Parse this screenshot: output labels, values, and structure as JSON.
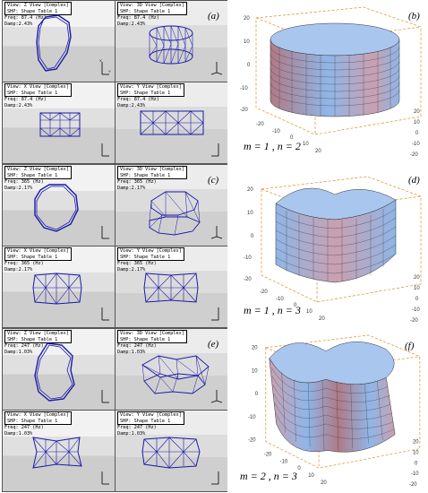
{
  "rows": [
    {
      "label_left": "(a)",
      "label_right": "(b)",
      "mode": "m = 1 , n = 2",
      "cells": [
        {
          "view": "View: Z View [Complex]",
          "shp": "SHP: Shape Table 1",
          "freq": "Freq: 87.4 (Hz)",
          "damp": "Damp:2.43%"
        },
        {
          "view": "View: 3D View [Complex]",
          "shp": "SHP: Shape Table 1",
          "freq": "Freq: 87.4 (Hz)",
          "damp": "Damp:2.43%"
        },
        {
          "view": "View: X View [Complex]",
          "shp": "SHP: Shape Table 1",
          "freq": "Freq: 87.4 (Hz)",
          "damp": "Damp:2.43%"
        },
        {
          "view": "View: Y View [Complex]",
          "shp": "SHP: Shape Table 1",
          "freq": "Freq: 87.4 (Hz)",
          "damp": "Damp:2.43%"
        }
      ],
      "ticks": {
        "z": [
          "20",
          "10",
          "0",
          "-10",
          "-20"
        ],
        "x": [
          "-20",
          "-10",
          "0",
          "10",
          "20"
        ],
        "y": [
          "-20",
          "-10",
          "0",
          "10",
          "20"
        ]
      }
    },
    {
      "label_left": "(c)",
      "label_right": "(d)",
      "mode": "m = 1 , n = 3",
      "cells": [
        {
          "view": "View: Z View [Complex]",
          "shp": "SHP: Shape Table 1",
          "freq": "Freq: 365 (Hz)",
          "damp": "Damp:2.17%"
        },
        {
          "view": "View: 3D View [Complex]",
          "shp": "SHP: Shape Table 1",
          "freq": "Freq: 365 (Hz)",
          "damp": "Damp:2.17%"
        },
        {
          "view": "View: X View [Complex]",
          "shp": "SHP: Shape Table 1",
          "freq": "Freq: 365 (Hz)",
          "damp": "Damp:2.17%"
        },
        {
          "view": "View: Y View [Complex]",
          "shp": "SHP: Shape Table 1",
          "freq": "Freq: 365 (Hz)",
          "damp": "Damp:2.17%"
        }
      ],
      "ticks": {
        "z": [
          "20",
          "10",
          "0",
          "-10",
          "-20"
        ],
        "x": [
          "-20",
          "-10",
          "0",
          "10",
          "20"
        ],
        "y": [
          "-20",
          "-10",
          "0",
          "10",
          "20"
        ]
      }
    },
    {
      "label_left": "(e)",
      "label_right": "(f)",
      "mode": "m = 2 , n = 3",
      "cells": [
        {
          "view": "View: Z View [Complex]",
          "shp": "SHP: Shape Table 1",
          "freq": "Freq: 247 (Hz)",
          "damp": "Damp:1.03%"
        },
        {
          "view": "View: 3D View [Complex]",
          "shp": "SHP: Shape Table 1",
          "freq": "Freq: 247 (Hz)",
          "damp": "Damp:1.03%"
        },
        {
          "view": "View: X View [Complex]",
          "shp": "SHP: Shape Table 1",
          "freq": "Freq: 247 (Hz)",
          "damp": "Damp:1.03%"
        },
        {
          "view": "View: Y View [Complex]",
          "shp": "SHP: Shape Table 1",
          "freq": "Freq: 247 (Hz)",
          "damp": "Damp:1.03%"
        }
      ],
      "ticks": {
        "z": [
          "20",
          "10",
          "0",
          "-10",
          "-20"
        ],
        "x": [
          "-20",
          "-10",
          "0",
          "10",
          "20"
        ],
        "y": [
          "-20",
          "-10",
          "0",
          "10",
          "20"
        ]
      }
    }
  ],
  "colors": {
    "mesh": "#1a1aa8",
    "frame": "#e08a1e",
    "surface_top": "#8fb6e8",
    "surface_mid": "#c9a0b0",
    "surface_low": "#b07a86"
  }
}
